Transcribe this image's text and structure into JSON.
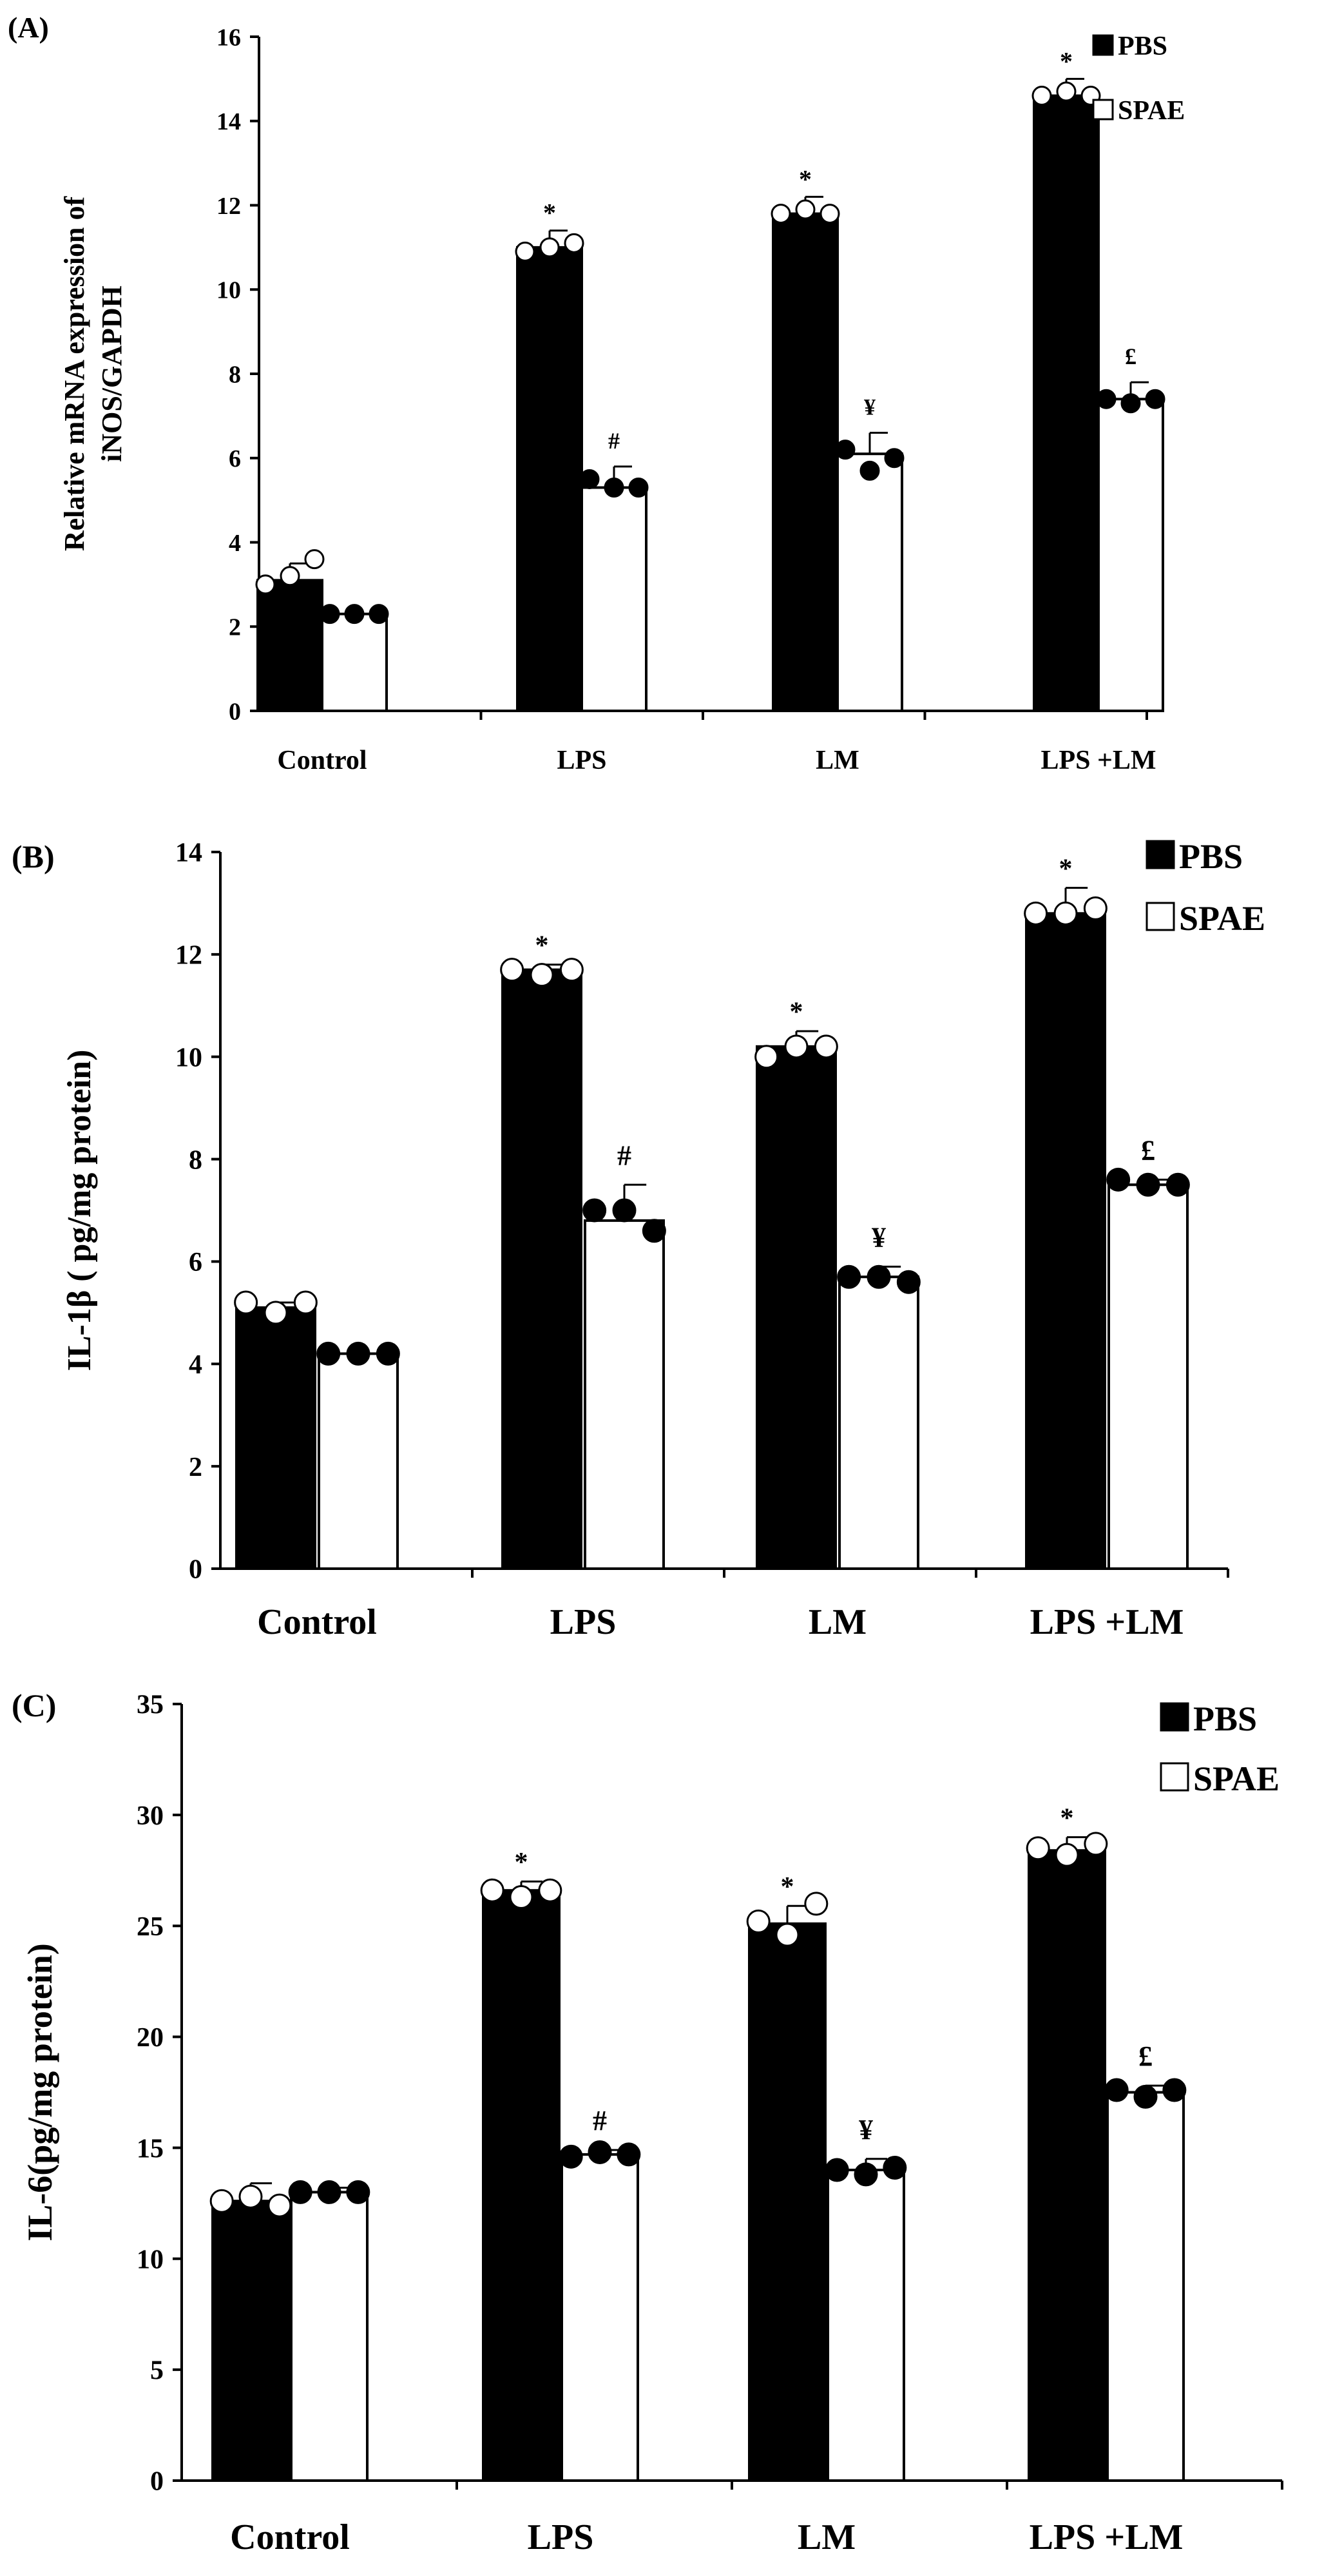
{
  "chart_data": [
    {
      "type": "bar",
      "panel_label": "(A)",
      "ylabel_lines": [
        "Relative mRNA expression of",
        "iNOS/GAPDH"
      ],
      "categories": [
        "Control",
        "LPS",
        "LM",
        "LPS +LM"
      ],
      "ylim": [
        0,
        16
      ],
      "yticks": [
        0,
        2,
        4,
        6,
        8,
        10,
        12,
        14,
        16
      ],
      "legend": {
        "placement": "top-right",
        "entries": [
          "PBS",
          "SPAE"
        ]
      },
      "series": [
        {
          "name": "PBS",
          "fill": "#000000",
          "marker": "open",
          "values": [
            3.1,
            11.0,
            11.8,
            14.6
          ],
          "errors": [
            0.4,
            0.4,
            0.4,
            0.4
          ],
          "points": [
            [
              3.0,
              3.2,
              3.6
            ],
            [
              10.9,
              11.0,
              11.1
            ],
            [
              11.8,
              11.9,
              11.8
            ],
            [
              14.6,
              14.7,
              14.6
            ]
          ],
          "annotations": [
            "",
            "*",
            "*",
            "*"
          ]
        },
        {
          "name": "SPAE",
          "fill": "#ffffff",
          "marker": "filled",
          "values": [
            2.3,
            5.3,
            6.1,
            7.4
          ],
          "errors": [
            0.0,
            0.5,
            0.5,
            0.4
          ],
          "points": [
            [
              2.3,
              2.3,
              2.3
            ],
            [
              5.5,
              5.3,
              5.3
            ],
            [
              6.2,
              5.7,
              6.0
            ],
            [
              7.4,
              7.3,
              7.4
            ]
          ],
          "annotations": [
            "",
            "#",
            "¥",
            "£"
          ]
        }
      ]
    },
    {
      "type": "bar",
      "panel_label": "(B)",
      "ylabel_lines": [
        "IL-1β ( pg/mg protein)"
      ],
      "categories": [
        "Control",
        "LPS",
        "LM",
        "LPS +LM"
      ],
      "ylim": [
        0,
        14
      ],
      "yticks": [
        0,
        2,
        4,
        6,
        8,
        10,
        12,
        14
      ],
      "legend": {
        "placement": "top-right",
        "entries": [
          "PBS",
          "SPAE"
        ]
      },
      "series": [
        {
          "name": "PBS",
          "fill": "#000000",
          "marker": "open",
          "values": [
            5.1,
            11.7,
            10.2,
            12.8
          ],
          "errors": [
            0.1,
            0.1,
            0.3,
            0.5
          ],
          "points": [
            [
              5.2,
              5.0,
              5.2
            ],
            [
              11.7,
              11.6,
              11.7
            ],
            [
              10.0,
              10.2,
              10.2
            ],
            [
              12.8,
              12.8,
              12.9
            ]
          ],
          "annotations": [
            "",
            "*",
            "*",
            "*"
          ]
        },
        {
          "name": "SPAE",
          "fill": "#ffffff",
          "marker": "filled",
          "values": [
            4.2,
            6.8,
            5.7,
            7.5
          ],
          "errors": [
            0.0,
            0.7,
            0.2,
            0.1
          ],
          "points": [
            [
              4.2,
              4.2,
              4.2
            ],
            [
              7.0,
              7.0,
              6.6
            ],
            [
              5.7,
              5.7,
              5.6
            ],
            [
              7.6,
              7.5,
              7.5
            ]
          ],
          "annotations": [
            "",
            "#",
            "¥",
            "£"
          ]
        }
      ]
    },
    {
      "type": "bar",
      "panel_label": "(C)",
      "ylabel_lines": [
        "IL-6(pg/mg protein)"
      ],
      "categories": [
        "Control",
        "LPS",
        "LM",
        "LPS +LM"
      ],
      "ylim": [
        0,
        35
      ],
      "yticks": [
        0,
        5,
        10,
        15,
        20,
        25,
        30,
        35
      ],
      "legend": {
        "placement": "top-right",
        "entries": [
          "PBS",
          "SPAE"
        ]
      },
      "series": [
        {
          "name": "PBS",
          "fill": "#000000",
          "marker": "open",
          "values": [
            12.6,
            26.6,
            25.1,
            28.4
          ],
          "errors": [
            0.8,
            0.4,
            0.8,
            0.6
          ],
          "points": [
            [
              12.6,
              12.8,
              12.4
            ],
            [
              26.6,
              26.3,
              26.6
            ],
            [
              25.2,
              24.6,
              26.0
            ],
            [
              28.5,
              28.2,
              28.7
            ]
          ],
          "annotations": [
            "",
            "*",
            "*",
            "*"
          ]
        },
        {
          "name": "SPAE",
          "fill": "#ffffff",
          "marker": "filled",
          "values": [
            13.0,
            14.7,
            14.0,
            17.5
          ],
          "errors": [
            0.2,
            0.2,
            0.5,
            0.3
          ],
          "points": [
            [
              13.0,
              13.0,
              13.0
            ],
            [
              14.6,
              14.8,
              14.7
            ],
            [
              14.0,
              13.8,
              14.1
            ],
            [
              17.6,
              17.3,
              17.6
            ]
          ],
          "annotations": [
            "",
            "#",
            "¥",
            "£"
          ]
        }
      ]
    }
  ]
}
